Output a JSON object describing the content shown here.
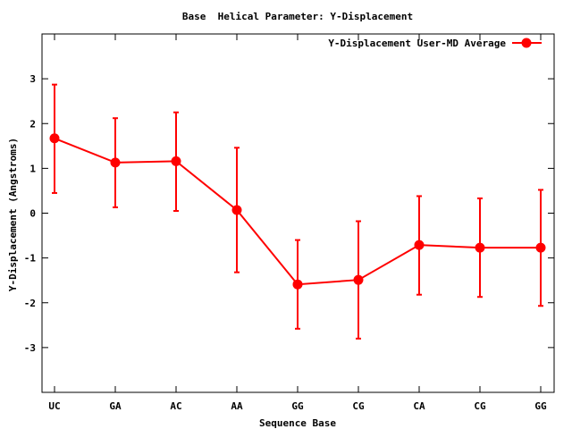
{
  "chart_data": {
    "type": "line",
    "title": "Base  Helical Parameter: Y-Displacement",
    "xlabel": "Sequence Base",
    "ylabel": "Y-Displacement (Angstroms)",
    "categories": [
      "UC",
      "GA",
      "AC",
      "AA",
      "GG",
      "CG",
      "CA",
      "CG",
      "GG"
    ],
    "ylim": [
      -4,
      4
    ],
    "yticks": [
      -3,
      -2,
      -1,
      0,
      1,
      2,
      3
    ],
    "ytick_labels": [
      "-3",
      "-2",
      "-1",
      "0",
      "1",
      "2",
      "3"
    ],
    "grid": false,
    "legend_position": "top-right",
    "series": [
      {
        "name": "Y-Displacement User-MD Average",
        "color": "#ff0000",
        "values": [
          1.67,
          1.13,
          1.16,
          0.07,
          -1.59,
          -1.49,
          -0.71,
          -0.77,
          -0.77
        ],
        "error_low": [
          0.45,
          0.13,
          0.05,
          -1.32,
          -2.58,
          -2.8,
          -1.82,
          -1.87,
          -2.07
        ],
        "error_high": [
          2.87,
          2.12,
          2.25,
          1.46,
          -0.6,
          -0.18,
          0.38,
          0.33,
          0.52
        ]
      }
    ]
  }
}
